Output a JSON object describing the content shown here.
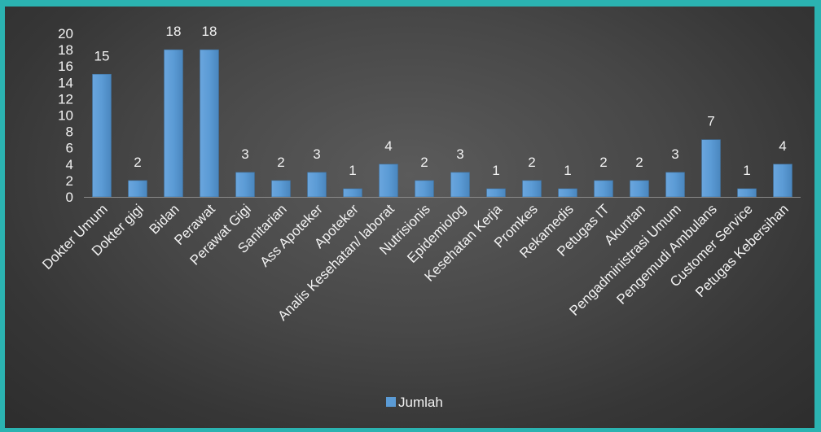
{
  "chart_data": {
    "type": "bar",
    "categories": [
      "Dokter Umum",
      "Dokter gigi",
      "Bidan",
      "Perawat",
      "Perawat Gigi",
      "Sanitarian",
      "Ass Apoteker",
      "Apoteker",
      "Analis Kesehatan/ laborat",
      "Nutrisionis",
      "Epidemiolog",
      "Kesehatan Kerja",
      "Promkes",
      "Rekamedis",
      "Petugas IT",
      "Akuntan",
      "Pengadministrasi Umum",
      "Pengemudi Ambulans",
      "Customer Service",
      "Petugas Kebersihan"
    ],
    "series": [
      {
        "name": "Jumlah",
        "values": [
          15,
          2,
          18,
          18,
          3,
          2,
          3,
          1,
          4,
          2,
          3,
          1,
          2,
          1,
          2,
          2,
          3,
          7,
          1,
          4
        ]
      }
    ],
    "yticks": [
      "0",
      "2",
      "4",
      "6",
      "8",
      "10",
      "12",
      "14",
      "16",
      "18",
      "20"
    ],
    "ylim": [
      0,
      20
    ],
    "grid": false,
    "data_labels": true,
    "legend_position": "bottom",
    "colors": {
      "bar": "#5b9bd5",
      "background": "#404040",
      "border": "#2bb3b1"
    }
  }
}
